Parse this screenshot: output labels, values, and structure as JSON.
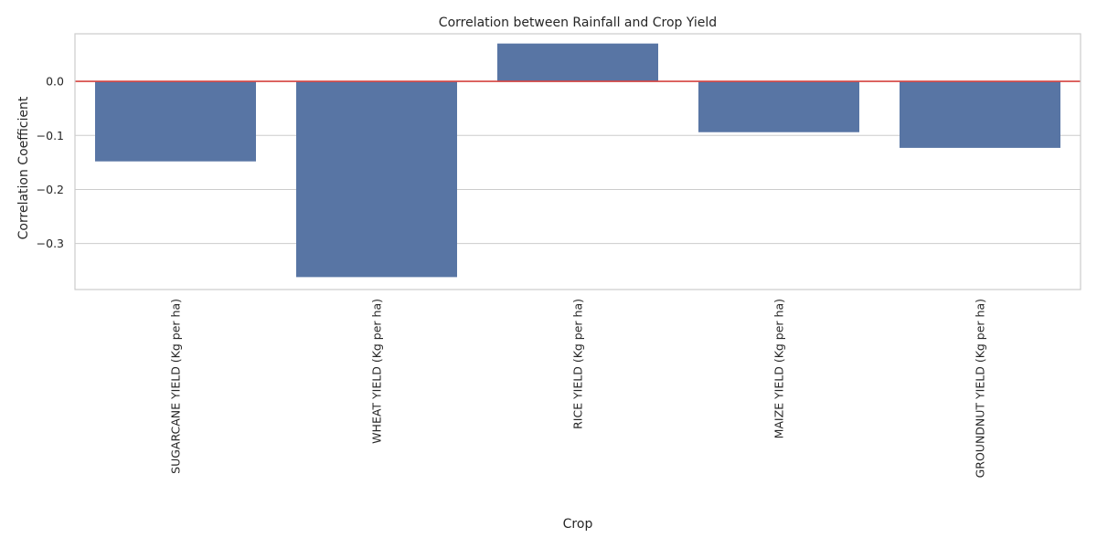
{
  "chart_data": {
    "type": "bar",
    "title": "Correlation between Rainfall and Crop Yield",
    "xlabel": "Crop",
    "ylabel": "Correlation Coefficient",
    "categories": [
      "SUGARCANE YIELD (Kg per ha)",
      "WHEAT YIELD (Kg per ha)",
      "RICE YIELD (Kg per ha)",
      "MAIZE YIELD (Kg per ha)",
      "GROUNDNUT YIELD (Kg per ha)"
    ],
    "values": [
      -0.148,
      -0.362,
      0.07,
      -0.094,
      -0.123
    ],
    "ylim": [
      -0.385,
      0.088
    ],
    "yticks": [
      0.0,
      -0.1,
      -0.2,
      -0.3
    ],
    "ytick_labels": [
      "0.0",
      "−0.1",
      "−0.2",
      "−0.3"
    ],
    "reference_line": 0.0,
    "grid": "horizontal",
    "bar_color": "#5875a4",
    "reference_line_color": "#d64541"
  }
}
